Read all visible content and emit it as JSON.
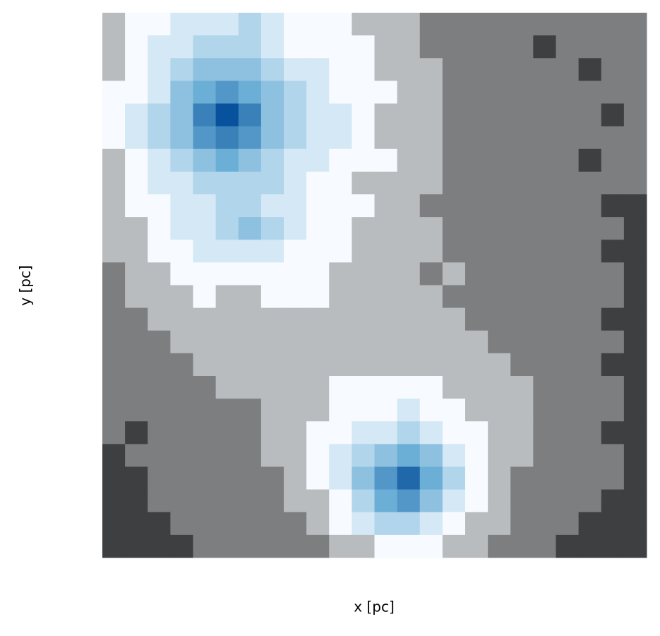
{
  "chart_data": {
    "type": "heatmap",
    "xlabel": "x [pc]",
    "ylabel": "y [pc]",
    "colormap": [
      "#000000",
      "#f7fbff",
      "#6baed6",
      "#08519c"
    ],
    "zlim": [
      0,
      12
    ],
    "z": [
      [
        3,
        4,
        4,
        5,
        5,
        5,
        6,
        5,
        4,
        4,
        4,
        3,
        3,
        3,
        2,
        2,
        2,
        2,
        2,
        2,
        2,
        2,
        2,
        2
      ],
      [
        3,
        4,
        5,
        5,
        6,
        6,
        6,
        5,
        4,
        4,
        4,
        4,
        3,
        3,
        2,
        2,
        2,
        2,
        2,
        1,
        2,
        2,
        2,
        2
      ],
      [
        3,
        4,
        5,
        6,
        7,
        7,
        7,
        6,
        5,
        5,
        4,
        4,
        3,
        3,
        3,
        2,
        2,
        2,
        2,
        2,
        2,
        1,
        2,
        2
      ],
      [
        4,
        4,
        5,
        7,
        8,
        9,
        8,
        7,
        6,
        5,
        4,
        4,
        4,
        3,
        3,
        2,
        2,
        2,
        2,
        2,
        2,
        2,
        2,
        2
      ],
      [
        4,
        5,
        6,
        7,
        10,
        12,
        10,
        7,
        6,
        5,
        5,
        4,
        3,
        3,
        3,
        2,
        2,
        2,
        2,
        2,
        2,
        2,
        1,
        2
      ],
      [
        4,
        5,
        6,
        7,
        9,
        10,
        9,
        7,
        6,
        5,
        5,
        4,
        3,
        3,
        3,
        2,
        2,
        2,
        2,
        2,
        2,
        2,
        2,
        2
      ],
      [
        3,
        4,
        5,
        6,
        7,
        8,
        7,
        6,
        5,
        5,
        4,
        4,
        4,
        3,
        3,
        2,
        2,
        2,
        2,
        2,
        2,
        1,
        2,
        2
      ],
      [
        3,
        4,
        5,
        5,
        6,
        6,
        6,
        6,
        5,
        4,
        4,
        3,
        3,
        3,
        3,
        2,
        2,
        2,
        2,
        2,
        2,
        2,
        2,
        2
      ],
      [
        3,
        4,
        4,
        5,
        5,
        6,
        6,
        5,
        5,
        4,
        4,
        4,
        3,
        3,
        2,
        2,
        2,
        2,
        2,
        2,
        2,
        2,
        1,
        1
      ],
      [
        3,
        3,
        4,
        5,
        5,
        6,
        7,
        6,
        5,
        4,
        4,
        3,
        3,
        3,
        3,
        2,
        2,
        2,
        2,
        2,
        2,
        2,
        2,
        1
      ],
      [
        3,
        3,
        4,
        4,
        5,
        5,
        5,
        5,
        4,
        4,
        4,
        3,
        3,
        3,
        3,
        2,
        2,
        2,
        2,
        2,
        2,
        2,
        1,
        1
      ],
      [
        2,
        3,
        3,
        4,
        4,
        4,
        4,
        4,
        4,
        4,
        3,
        3,
        3,
        3,
        2,
        3,
        2,
        2,
        2,
        2,
        2,
        2,
        2,
        1
      ],
      [
        2,
        3,
        3,
        3,
        4,
        3,
        3,
        4,
        4,
        4,
        3,
        3,
        3,
        3,
        3,
        2,
        2,
        2,
        2,
        2,
        2,
        2,
        2,
        1
      ],
      [
        2,
        2,
        3,
        3,
        3,
        3,
        3,
        3,
        3,
        3,
        3,
        3,
        3,
        3,
        3,
        3,
        2,
        2,
        2,
        2,
        2,
        2,
        1,
        1
      ],
      [
        2,
        2,
        2,
        3,
        3,
        3,
        3,
        3,
        3,
        3,
        3,
        3,
        3,
        3,
        3,
        3,
        3,
        2,
        2,
        2,
        2,
        2,
        2,
        1
      ],
      [
        2,
        2,
        2,
        2,
        3,
        3,
        3,
        3,
        3,
        3,
        3,
        3,
        3,
        3,
        3,
        3,
        3,
        3,
        2,
        2,
        2,
        2,
        1,
        1
      ],
      [
        2,
        2,
        2,
        2,
        2,
        3,
        3,
        3,
        3,
        3,
        4,
        4,
        4,
        4,
        4,
        3,
        3,
        3,
        3,
        2,
        2,
        2,
        2,
        1
      ],
      [
        2,
        2,
        2,
        2,
        2,
        2,
        2,
        3,
        3,
        3,
        4,
        4,
        4,
        5,
        4,
        4,
        3,
        3,
        3,
        2,
        2,
        2,
        2,
        1
      ],
      [
        2,
        1,
        2,
        2,
        2,
        2,
        2,
        3,
        3,
        4,
        4,
        5,
        5,
        6,
        5,
        4,
        4,
        3,
        3,
        2,
        2,
        2,
        1,
        1
      ],
      [
        1,
        2,
        2,
        2,
        2,
        2,
        2,
        3,
        3,
        4,
        5,
        6,
        7,
        8,
        7,
        5,
        4,
        3,
        3,
        2,
        2,
        2,
        2,
        1
      ],
      [
        1,
        1,
        2,
        2,
        2,
        2,
        2,
        2,
        3,
        4,
        5,
        7,
        9,
        11,
        8,
        6,
        4,
        3,
        2,
        2,
        2,
        2,
        2,
        1
      ],
      [
        1,
        1,
        2,
        2,
        2,
        2,
        2,
        2,
        3,
        3,
        4,
        6,
        8,
        9,
        7,
        5,
        4,
        3,
        2,
        2,
        2,
        2,
        1,
        1
      ],
      [
        1,
        1,
        1,
        2,
        2,
        2,
        2,
        2,
        2,
        3,
        4,
        5,
        6,
        6,
        5,
        4,
        3,
        3,
        2,
        2,
        2,
        1,
        1,
        1
      ],
      [
        1,
        1,
        1,
        1,
        2,
        2,
        2,
        2,
        2,
        2,
        3,
        3,
        4,
        4,
        4,
        3,
        3,
        2,
        2,
        2,
        1,
        1,
        1,
        1
      ]
    ]
  }
}
